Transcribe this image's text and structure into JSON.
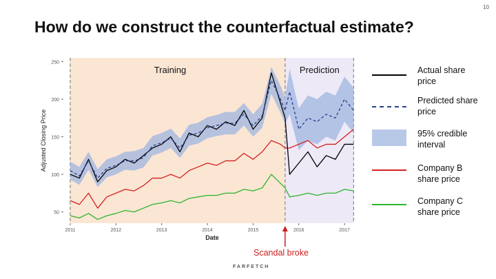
{
  "page_number": "10",
  "slide_title": "How do we construct the counterfactual estimate?",
  "annotation": "Scandal broke",
  "footer_logo": "FARFETCH",
  "legend": [
    {
      "label": "Actual share price",
      "style": "solid",
      "color": "#000000"
    },
    {
      "label": "Predicted share price",
      "style": "dashed",
      "color": "#2b3f8f"
    },
    {
      "label": "95% credible interval",
      "style": "band",
      "color": "#b8c9e8"
    },
    {
      "label": "Company B share price",
      "style": "solid",
      "color": "#d42020"
    },
    {
      "label": "Company C share price",
      "style": "solid",
      "color": "#2cb52c"
    }
  ],
  "colors": {
    "training_bg": "#fbe6d4",
    "prediction_bg": "#eee9f6",
    "actual": "#000000",
    "predicted": "#2b3f8f",
    "band": "#9fb6e0",
    "company_b": "#d42020",
    "company_c": "#2cb52c",
    "annotation": "#cc1e1e"
  },
  "chart_data": {
    "type": "line",
    "title": "",
    "xlabel": "Date",
    "ylabel": "Adjusted Closing Price",
    "xlim": [
      2010.85,
      2017.3
    ],
    "ylim": [
      35,
      255
    ],
    "yticks": [
      50,
      100,
      150,
      200,
      250
    ],
    "xticks": [
      2011,
      2012,
      2013,
      2014,
      2015,
      2016,
      2017
    ],
    "xticklabels": [
      "2011",
      "2012",
      "2013",
      "2014",
      "2015",
      "2016",
      "2017"
    ],
    "grid": false,
    "regions": [
      {
        "label": "Training",
        "start": 2011.0,
        "end": 2015.7
      },
      {
        "label": "Prediction",
        "start": 2015.7,
        "end": 2017.2
      }
    ],
    "event": {
      "label": "Scandal broke",
      "x": 2015.7
    },
    "series": [
      {
        "name": "Actual share price",
        "x": [
          2011.0,
          2011.2,
          2011.4,
          2011.6,
          2011.8,
          2012.0,
          2012.2,
          2012.4,
          2012.6,
          2012.8,
          2013.0,
          2013.2,
          2013.4,
          2013.6,
          2013.8,
          2014.0,
          2014.2,
          2014.4,
          2014.6,
          2014.8,
          2015.0,
          2015.2,
          2015.4,
          2015.6,
          2015.7,
          2015.8,
          2016.0,
          2016.2,
          2016.4,
          2016.6,
          2016.8,
          2017.0,
          2017.2
        ],
        "y": [
          100,
          95,
          120,
          90,
          105,
          110,
          120,
          115,
          125,
          135,
          140,
          150,
          130,
          155,
          150,
          165,
          160,
          170,
          165,
          185,
          160,
          175,
          235,
          195,
          175,
          100,
          115,
          130,
          110,
          125,
          120,
          140,
          140
        ]
      },
      {
        "name": "Predicted share price",
        "x": [
          2011.0,
          2011.2,
          2011.4,
          2011.6,
          2011.8,
          2012.0,
          2012.2,
          2012.4,
          2012.6,
          2012.8,
          2013.0,
          2013.2,
          2013.4,
          2013.6,
          2013.8,
          2014.0,
          2014.2,
          2014.4,
          2014.6,
          2014.8,
          2015.0,
          2015.2,
          2015.4,
          2015.6,
          2015.7,
          2015.8,
          2016.0,
          2016.2,
          2016.4,
          2016.6,
          2016.8,
          2017.0,
          2017.2
        ],
        "y": [
          105,
          98,
          118,
          95,
          108,
          112,
          118,
          118,
          122,
          138,
          142,
          148,
          135,
          152,
          155,
          162,
          165,
          168,
          168,
          180,
          165,
          178,
          225,
          200,
          185,
          210,
          160,
          175,
          170,
          180,
          175,
          200,
          185
        ]
      },
      {
        "name": "Company B share price",
        "x": [
          2011.0,
          2011.2,
          2011.4,
          2011.6,
          2011.8,
          2012.0,
          2012.2,
          2012.4,
          2012.6,
          2012.8,
          2013.0,
          2013.2,
          2013.4,
          2013.6,
          2013.8,
          2014.0,
          2014.2,
          2014.4,
          2014.6,
          2014.8,
          2015.0,
          2015.2,
          2015.4,
          2015.6,
          2015.7,
          2015.8,
          2016.0,
          2016.2,
          2016.4,
          2016.6,
          2016.8,
          2017.0,
          2017.2
        ],
        "y": [
          65,
          60,
          75,
          55,
          70,
          75,
          80,
          78,
          85,
          95,
          95,
          100,
          95,
          105,
          110,
          115,
          112,
          118,
          118,
          128,
          120,
          130,
          145,
          140,
          135,
          135,
          140,
          145,
          135,
          140,
          140,
          150,
          160
        ]
      },
      {
        "name": "Company C share price",
        "x": [
          2011.0,
          2011.2,
          2011.4,
          2011.6,
          2011.8,
          2012.0,
          2012.2,
          2012.4,
          2012.6,
          2012.8,
          2013.0,
          2013.2,
          2013.4,
          2013.6,
          2013.8,
          2014.0,
          2014.2,
          2014.4,
          2014.6,
          2014.8,
          2015.0,
          2015.2,
          2015.4,
          2015.6,
          2015.7,
          2015.8,
          2016.0,
          2016.2,
          2016.4,
          2016.6,
          2016.8,
          2017.0,
          2017.2
        ],
        "y": [
          45,
          42,
          48,
          40,
          45,
          48,
          52,
          50,
          55,
          60,
          62,
          65,
          62,
          68,
          70,
          72,
          72,
          75,
          75,
          80,
          78,
          82,
          100,
          88,
          82,
          70,
          72,
          75,
          72,
          75,
          75,
          80,
          78
        ]
      }
    ],
    "band": {
      "name": "95% credible interval",
      "halfwidth": [
        12,
        12,
        12,
        12,
        12,
        12,
        12,
        13,
        13,
        13,
        13,
        13,
        13,
        14,
        14,
        14,
        14,
        15,
        15,
        15,
        15,
        16,
        18,
        18,
        18,
        30,
        28,
        30,
        30,
        30,
        30,
        30,
        30
      ]
    }
  }
}
